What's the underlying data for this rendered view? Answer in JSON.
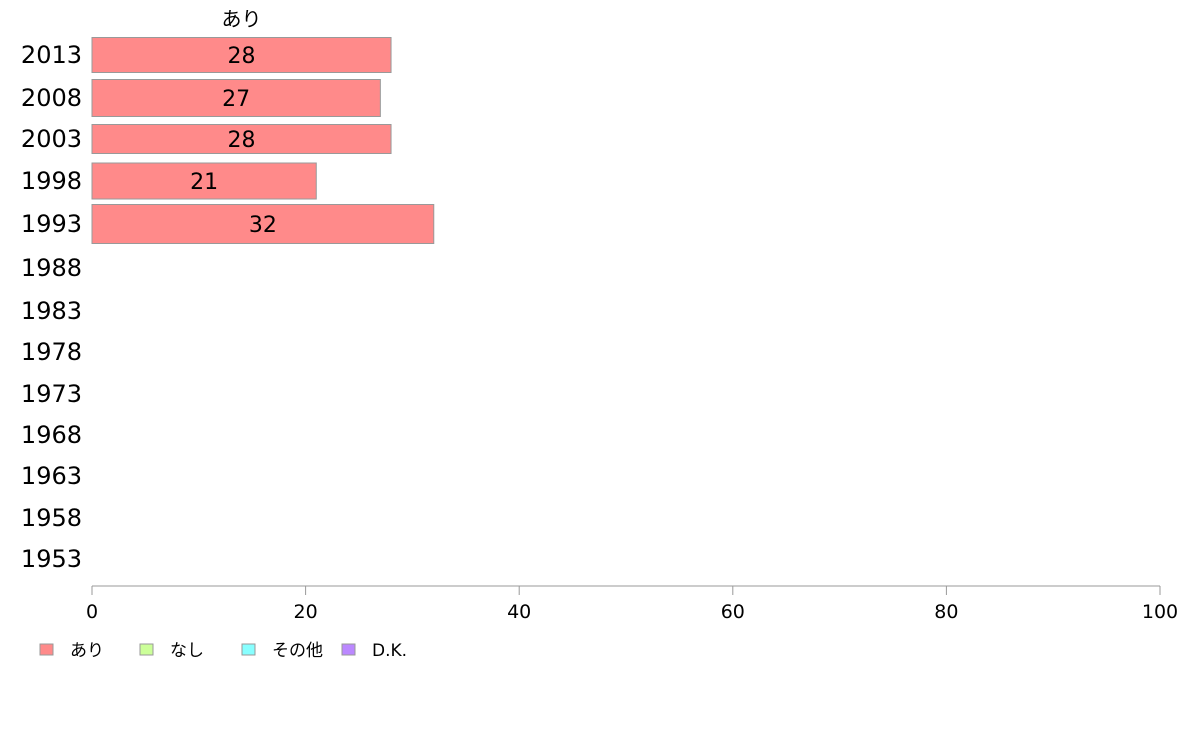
{
  "chart_data": {
    "type": "bar",
    "orientation": "horizontal",
    "stacked": true,
    "categories": [
      "2013",
      "2008",
      "2003",
      "1998",
      "1993",
      "1988",
      "1983",
      "1978",
      "1973",
      "1968",
      "1963",
      "1958",
      "1953"
    ],
    "series": [
      {
        "name": "あり",
        "color": "#ff8a8a",
        "values": [
          28,
          27,
          28,
          21,
          32,
          null,
          null,
          null,
          null,
          null,
          null,
          null,
          null
        ],
        "labels": [
          "28",
          "27",
          "28",
          "21",
          "32",
          "",
          "",
          "",
          "",
          "",
          "",
          "",
          ""
        ]
      },
      {
        "name": "なし",
        "color": "#ccff99",
        "values": [
          null,
          null,
          null,
          null,
          null,
          null,
          null,
          null,
          null,
          null,
          null,
          null,
          null
        ]
      },
      {
        "name": "その他",
        "color": "#88ffff",
        "values": [
          null,
          null,
          null,
          null,
          null,
          null,
          null,
          null,
          null,
          null,
          null,
          null,
          null
        ]
      },
      {
        "name": "D.K.",
        "color": "#bb88ff",
        "values": [
          null,
          null,
          null,
          null,
          null,
          null,
          null,
          null,
          null,
          null,
          null,
          null,
          null
        ]
      }
    ],
    "series_header": "あり",
    "xlim": [
      0,
      100
    ],
    "xticks": [
      "0",
      "20",
      "40",
      "60",
      "80",
      "100"
    ],
    "grid": false,
    "legend_position": "bottom-left",
    "axis_color": "#999999",
    "bar_stroke": "#999999"
  }
}
